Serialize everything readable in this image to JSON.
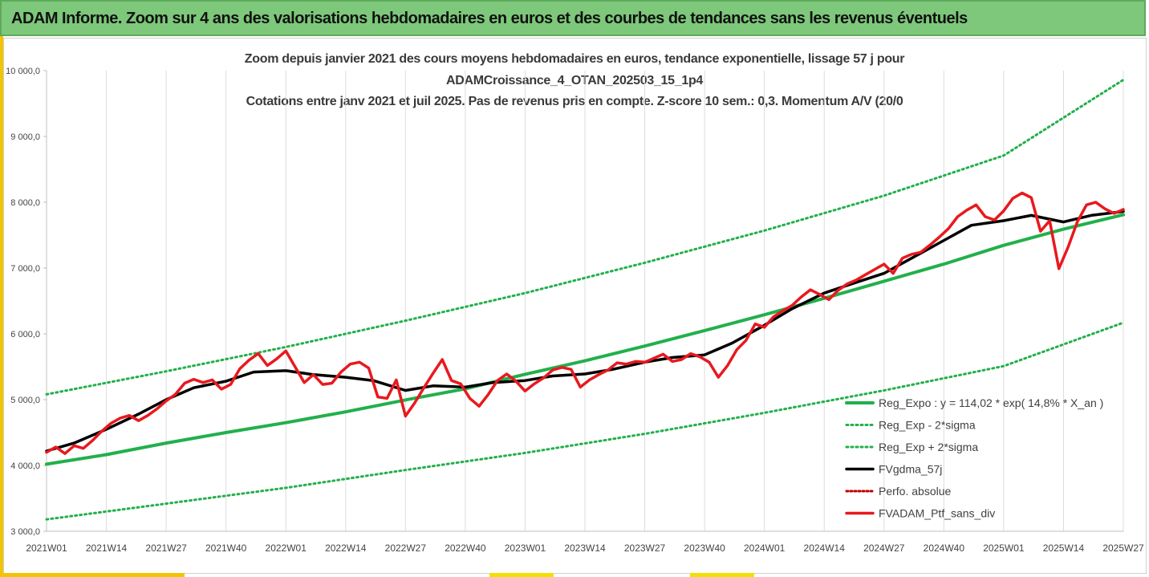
{
  "header": {
    "title": "ADAM Informe. Zoom sur 4 ans des valorisations hebdomadaires en euros et des courbes de tendances sans les revenus éventuels"
  },
  "chart_title": {
    "line1": "Zoom depuis janvier 2021 des cours moyens hebdomadaires  en euros, tendance exponentielle, lissage 57 j pour",
    "line2": "ADAMCroissance_4_OTAN_202503_15_1p4",
    "line3": "Cotations entre janv 2021 et juil 2025. Pas de revenus pris en compte. Z-score 10 sem.: 0,3. Momentum A/V (20/0"
  },
  "colors": {
    "header_bg": "#7dc87a",
    "accent_yellow": "#f3c400",
    "trend_green": "#22b04b",
    "price_red": "#e8191e",
    "ma_black": "#000000"
  },
  "chart_data": {
    "type": "line",
    "x_ticks": [
      "2021W01",
      "2021W14",
      "2021W27",
      "2021W40",
      "2022W01",
      "2022W14",
      "2022W27",
      "2022W40",
      "2023W01",
      "2023W14",
      "2023W27",
      "2023W40",
      "2024W01",
      "2024W14",
      "2024W27",
      "2024W40",
      "2025W01",
      "2025W14",
      "2025W27"
    ],
    "y_ticks": [
      "3 000,0",
      "4 000,0",
      "5 000,0",
      "6 000,0",
      "7 000,0",
      "8 000,0",
      "9 000,0",
      "10 000,0"
    ],
    "ylim": [
      3000,
      10000
    ],
    "grid": "vertical",
    "legend_position": "bottom-right",
    "series": [
      {
        "name": "Reg_Expo : y = 114,02 * exp( 14,8% *  X_an )",
        "style": "solid-green",
        "values": [
          [
            0,
            4020
          ],
          [
            13,
            4165
          ],
          [
            26,
            4340
          ],
          [
            39,
            4500
          ],
          [
            52,
            4650
          ],
          [
            65,
            4815
          ],
          [
            78,
            4995
          ],
          [
            91,
            5165
          ],
          [
            104,
            5385
          ],
          [
            117,
            5590
          ],
          [
            130,
            5815
          ],
          [
            143,
            6050
          ],
          [
            156,
            6290
          ],
          [
            169,
            6540
          ],
          [
            182,
            6800
          ],
          [
            195,
            7060
          ],
          [
            208,
            7345
          ],
          [
            221,
            7590
          ],
          [
            234,
            7810
          ]
        ]
      },
      {
        "name": "Reg_Exp - 2*sigma",
        "style": "dotted-green",
        "values": [
          [
            0,
            3180
          ],
          [
            26,
            3420
          ],
          [
            52,
            3660
          ],
          [
            78,
            3930
          ],
          [
            104,
            4190
          ],
          [
            130,
            4480
          ],
          [
            156,
            4800
          ],
          [
            182,
            5140
          ],
          [
            208,
            5510
          ],
          [
            234,
            6170
          ]
        ]
      },
      {
        "name": "Reg_Exp + 2*sigma",
        "style": "dotted-green",
        "values": [
          [
            0,
            5080
          ],
          [
            26,
            5430
          ],
          [
            52,
            5800
          ],
          [
            78,
            6200
          ],
          [
            104,
            6620
          ],
          [
            130,
            7080
          ],
          [
            156,
            7570
          ],
          [
            182,
            8100
          ],
          [
            208,
            8710
          ],
          [
            234,
            9860
          ]
        ]
      },
      {
        "name": "FVgdma_57j",
        "style": "solid-black",
        "values": [
          [
            0,
            4220
          ],
          [
            6,
            4340
          ],
          [
            13,
            4550
          ],
          [
            20,
            4780
          ],
          [
            26,
            5000
          ],
          [
            32,
            5180
          ],
          [
            39,
            5280
          ],
          [
            45,
            5420
          ],
          [
            52,
            5440
          ],
          [
            58,
            5380
          ],
          [
            65,
            5340
          ],
          [
            71,
            5290
          ],
          [
            78,
            5140
          ],
          [
            84,
            5210
          ],
          [
            91,
            5190
          ],
          [
            97,
            5260
          ],
          [
            104,
            5290
          ],
          [
            110,
            5360
          ],
          [
            117,
            5390
          ],
          [
            123,
            5460
          ],
          [
            130,
            5570
          ],
          [
            136,
            5640
          ],
          [
            143,
            5680
          ],
          [
            149,
            5860
          ],
          [
            156,
            6130
          ],
          [
            162,
            6380
          ],
          [
            169,
            6620
          ],
          [
            175,
            6760
          ],
          [
            182,
            6920
          ],
          [
            188,
            7150
          ],
          [
            195,
            7420
          ],
          [
            201,
            7650
          ],
          [
            208,
            7720
          ],
          [
            214,
            7800
          ],
          [
            221,
            7700
          ],
          [
            227,
            7800
          ],
          [
            234,
            7860
          ]
        ]
      },
      {
        "name": "Perfo. absolue",
        "style": "dotted-red",
        "values": []
      },
      {
        "name": "FVADAM_Ptf_sans_div",
        "style": "solid-red",
        "values": [
          [
            0,
            4200
          ],
          [
            2,
            4280
          ],
          [
            4,
            4180
          ],
          [
            6,
            4300
          ],
          [
            8,
            4260
          ],
          [
            10,
            4380
          ],
          [
            12,
            4520
          ],
          [
            14,
            4640
          ],
          [
            16,
            4720
          ],
          [
            18,
            4760
          ],
          [
            20,
            4680
          ],
          [
            22,
            4760
          ],
          [
            24,
            4860
          ],
          [
            26,
            4980
          ],
          [
            28,
            5080
          ],
          [
            30,
            5250
          ],
          [
            32,
            5310
          ],
          [
            34,
            5260
          ],
          [
            36,
            5300
          ],
          [
            38,
            5160
          ],
          [
            40,
            5230
          ],
          [
            42,
            5470
          ],
          [
            44,
            5600
          ],
          [
            46,
            5700
          ],
          [
            48,
            5520
          ],
          [
            50,
            5620
          ],
          [
            52,
            5740
          ],
          [
            54,
            5500
          ],
          [
            56,
            5260
          ],
          [
            58,
            5380
          ],
          [
            60,
            5230
          ],
          [
            62,
            5250
          ],
          [
            64,
            5420
          ],
          [
            66,
            5540
          ],
          [
            68,
            5570
          ],
          [
            70,
            5480
          ],
          [
            72,
            5040
          ],
          [
            74,
            5020
          ],
          [
            76,
            5300
          ],
          [
            78,
            4750
          ],
          [
            80,
            4950
          ],
          [
            82,
            5180
          ],
          [
            84,
            5400
          ],
          [
            86,
            5610
          ],
          [
            88,
            5290
          ],
          [
            90,
            5240
          ],
          [
            92,
            5020
          ],
          [
            94,
            4900
          ],
          [
            96,
            5080
          ],
          [
            98,
            5290
          ],
          [
            100,
            5390
          ],
          [
            102,
            5280
          ],
          [
            104,
            5130
          ],
          [
            106,
            5240
          ],
          [
            108,
            5330
          ],
          [
            110,
            5450
          ],
          [
            112,
            5490
          ],
          [
            114,
            5460
          ],
          [
            116,
            5190
          ],
          [
            118,
            5300
          ],
          [
            120,
            5380
          ],
          [
            122,
            5450
          ],
          [
            124,
            5560
          ],
          [
            126,
            5540
          ],
          [
            128,
            5580
          ],
          [
            130,
            5570
          ],
          [
            132,
            5630
          ],
          [
            134,
            5690
          ],
          [
            136,
            5580
          ],
          [
            138,
            5610
          ],
          [
            140,
            5700
          ],
          [
            142,
            5650
          ],
          [
            144,
            5570
          ],
          [
            146,
            5340
          ],
          [
            148,
            5520
          ],
          [
            150,
            5760
          ],
          [
            152,
            5900
          ],
          [
            154,
            6150
          ],
          [
            156,
            6100
          ],
          [
            158,
            6260
          ],
          [
            160,
            6350
          ],
          [
            162,
            6430
          ],
          [
            164,
            6560
          ],
          [
            166,
            6670
          ],
          [
            168,
            6600
          ],
          [
            170,
            6520
          ],
          [
            172,
            6660
          ],
          [
            174,
            6760
          ],
          [
            176,
            6820
          ],
          [
            178,
            6900
          ],
          [
            180,
            6980
          ],
          [
            182,
            7060
          ],
          [
            184,
            6920
          ],
          [
            186,
            7150
          ],
          [
            188,
            7210
          ],
          [
            190,
            7240
          ],
          [
            192,
            7350
          ],
          [
            194,
            7470
          ],
          [
            196,
            7600
          ],
          [
            198,
            7780
          ],
          [
            200,
            7880
          ],
          [
            202,
            7960
          ],
          [
            204,
            7780
          ],
          [
            206,
            7730
          ],
          [
            208,
            7870
          ],
          [
            210,
            8060
          ],
          [
            212,
            8140
          ],
          [
            214,
            8070
          ],
          [
            216,
            7560
          ],
          [
            218,
            7720
          ],
          [
            220,
            6990
          ],
          [
            222,
            7320
          ],
          [
            224,
            7700
          ],
          [
            226,
            7960
          ],
          [
            228,
            8000
          ],
          [
            230,
            7900
          ],
          [
            232,
            7830
          ],
          [
            234,
            7890
          ]
        ]
      }
    ]
  }
}
